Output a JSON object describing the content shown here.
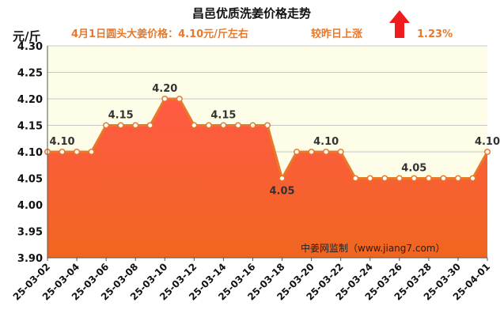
{
  "header": {
    "title": "昌邑优质洗姜价格走势",
    "price_note": "4月1日圆头大姜价格：4.10元/斤左右",
    "change_label": "较昨日上涨",
    "change_value": "1.23%",
    "trend_icon": "up-arrow-icon"
  },
  "watermark": "中姜网监制（www.jiang7.com）",
  "colors": {
    "line": "#e8782a",
    "fill_top": "#ff5a45",
    "fill_bottom": "#f0661f",
    "arrow": "#ee1c1c",
    "plot_bg": "#fdfde8",
    "grid": "#c8c8c8"
  },
  "chart_data": {
    "type": "area",
    "title": "昌邑优质洗姜价格走势",
    "ylabel": "元/斤",
    "ylim": [
      3.9,
      4.3
    ],
    "yticks": [
      "4.30",
      "4.25",
      "4.20",
      "4.15",
      "4.10",
      "4.05",
      "4.00",
      "3.95",
      "3.90"
    ],
    "grid": true,
    "x_labels": [
      "25-03-02",
      "25-03-04",
      "25-03-06",
      "25-03-08",
      "25-03-10",
      "25-03-12",
      "25-03-14",
      "25-03-16",
      "25-03-18",
      "25-03-20",
      "25-03-22",
      "25-03-24",
      "25-03-26",
      "25-03-28",
      "25-03-30",
      "25-04-01"
    ],
    "x": [
      "25-03-02",
      "25-03-03",
      "25-03-04",
      "25-03-05",
      "25-03-06",
      "25-03-07",
      "25-03-08",
      "25-03-09",
      "25-03-10",
      "25-03-11",
      "25-03-12",
      "25-03-13",
      "25-03-14",
      "25-03-15",
      "25-03-16",
      "25-03-17",
      "25-03-18",
      "25-03-19",
      "25-03-20",
      "25-03-21",
      "25-03-22",
      "25-03-23",
      "25-03-24",
      "25-03-25",
      "25-03-26",
      "25-03-27",
      "25-03-28",
      "25-03-29",
      "25-03-30",
      "25-03-31",
      "25-04-01"
    ],
    "values": [
      4.1,
      4.1,
      4.1,
      4.1,
      4.15,
      4.15,
      4.15,
      4.15,
      4.2,
      4.2,
      4.15,
      4.15,
      4.15,
      4.15,
      4.15,
      4.15,
      4.05,
      4.1,
      4.1,
      4.1,
      4.1,
      4.05,
      4.05,
      4.05,
      4.05,
      4.05,
      4.05,
      4.05,
      4.05,
      4.05,
      4.1
    ],
    "annotations": [
      {
        "index": 1,
        "text": "4.10",
        "pos": "above"
      },
      {
        "index": 5,
        "text": "4.15",
        "pos": "above"
      },
      {
        "index": 8,
        "text": "4.20",
        "pos": "above"
      },
      {
        "index": 12,
        "text": "4.15",
        "pos": "above"
      },
      {
        "index": 16,
        "text": "4.05",
        "pos": "below"
      },
      {
        "index": 19,
        "text": "4.10",
        "pos": "above"
      },
      {
        "index": 25,
        "text": "4.05",
        "pos": "above"
      },
      {
        "index": 30,
        "text": "4.10",
        "pos": "above"
      }
    ]
  }
}
